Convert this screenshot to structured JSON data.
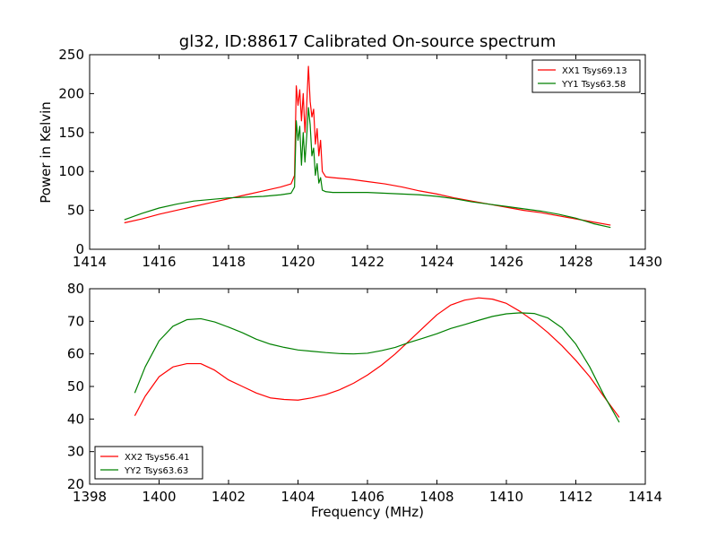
{
  "chart_data": [
    {
      "type": "line",
      "title": "gl32, ID:88617 Calibrated On-source spectrum",
      "xlabel": "",
      "ylabel": "Power in Kelvin",
      "xlim": [
        1414,
        1430
      ],
      "ylim": [
        0,
        250
      ],
      "xticks": [
        1414,
        1416,
        1418,
        1420,
        1422,
        1424,
        1426,
        1428,
        1430
      ],
      "yticks": [
        0,
        50,
        100,
        150,
        200,
        250
      ],
      "legend_position": "upper right",
      "series": [
        {
          "name": "XX1 Tsys69.13",
          "color": "#ff0000",
          "x": [
            1415.0,
            1415.5,
            1416.0,
            1416.5,
            1417.0,
            1417.5,
            1418.0,
            1418.5,
            1419.0,
            1419.5,
            1419.8,
            1419.9,
            1419.95,
            1420.0,
            1420.05,
            1420.1,
            1420.15,
            1420.2,
            1420.25,
            1420.3,
            1420.35,
            1420.4,
            1420.45,
            1420.5,
            1420.55,
            1420.6,
            1420.65,
            1420.7,
            1420.8,
            1421.0,
            1421.5,
            1422.0,
            1422.5,
            1423.0,
            1423.5,
            1424.0,
            1424.5,
            1425.0,
            1425.5,
            1426.0,
            1426.5,
            1427.0,
            1427.5,
            1428.0,
            1428.5,
            1429.0
          ],
          "y": [
            34,
            39,
            45,
            50,
            55,
            60,
            65,
            70,
            75,
            80,
            84,
            95,
            210,
            185,
            205,
            165,
            200,
            150,
            185,
            235,
            190,
            170,
            180,
            135,
            155,
            120,
            140,
            100,
            93,
            92,
            90,
            87,
            84,
            80,
            75,
            71,
            66,
            62,
            58,
            54,
            50,
            47,
            43,
            39,
            35,
            31
          ]
        },
        {
          "name": "YY1 Tsys63.58",
          "color": "#008000",
          "x": [
            1415.0,
            1415.5,
            1416.0,
            1416.5,
            1417.0,
            1417.5,
            1418.0,
            1418.5,
            1419.0,
            1419.5,
            1419.8,
            1419.9,
            1419.95,
            1420.0,
            1420.05,
            1420.1,
            1420.15,
            1420.2,
            1420.25,
            1420.3,
            1420.35,
            1420.4,
            1420.45,
            1420.5,
            1420.55,
            1420.6,
            1420.65,
            1420.7,
            1420.8,
            1421.0,
            1421.5,
            1422.0,
            1422.5,
            1423.0,
            1423.5,
            1424.0,
            1424.5,
            1425.0,
            1425.5,
            1426.0,
            1426.5,
            1427.0,
            1427.5,
            1428.0,
            1428.5,
            1429.0
          ],
          "y": [
            38,
            46,
            53,
            58,
            62,
            64,
            66,
            67,
            68,
            70,
            72,
            80,
            165,
            140,
            158,
            108,
            150,
            112,
            145,
            182,
            160,
            120,
            130,
            95,
            110,
            85,
            92,
            76,
            74,
            73,
            73,
            73,
            72,
            71,
            70,
            68,
            65,
            61,
            58,
            55,
            52,
            49,
            45,
            40,
            33,
            28
          ]
        }
      ]
    },
    {
      "type": "line",
      "title": "",
      "xlabel": "Frequency (MHz)",
      "ylabel": "",
      "xlim": [
        1398,
        1414
      ],
      "ylim": [
        20,
        80
      ],
      "xticks": [
        1398,
        1400,
        1402,
        1404,
        1406,
        1408,
        1410,
        1412,
        1414
      ],
      "yticks": [
        20,
        30,
        40,
        50,
        60,
        70,
        80
      ],
      "legend_position": "lower left",
      "series": [
        {
          "name": "XX2 Tsys56.41",
          "color": "#ff0000",
          "x": [
            1399.3,
            1399.6,
            1400.0,
            1400.4,
            1400.8,
            1401.2,
            1401.6,
            1402.0,
            1402.4,
            1402.8,
            1403.2,
            1403.6,
            1404.0,
            1404.4,
            1404.8,
            1405.2,
            1405.6,
            1406.0,
            1406.4,
            1406.8,
            1407.2,
            1407.6,
            1408.0,
            1408.4,
            1408.8,
            1409.2,
            1409.6,
            1410.0,
            1410.4,
            1410.8,
            1411.2,
            1411.6,
            1412.0,
            1412.4,
            1412.8,
            1413.25
          ],
          "y": [
            41,
            47,
            53,
            56,
            57,
            57,
            55,
            52,
            50,
            48,
            46.5,
            46,
            45.8,
            46.5,
            47.5,
            49,
            51,
            53.5,
            56.5,
            60,
            64,
            68,
            72,
            75,
            76.5,
            77.2,
            76.8,
            75.5,
            73,
            70,
            66.5,
            62.5,
            58,
            53,
            47,
            40.5
          ]
        },
        {
          "name": "YY2 Tsys63.63",
          "color": "#008000",
          "x": [
            1399.3,
            1399.6,
            1400.0,
            1400.4,
            1400.8,
            1401.2,
            1401.6,
            1402.0,
            1402.4,
            1402.8,
            1403.2,
            1403.6,
            1404.0,
            1404.4,
            1404.8,
            1405.2,
            1405.6,
            1406.0,
            1406.4,
            1406.8,
            1407.2,
            1407.6,
            1408.0,
            1408.4,
            1408.8,
            1409.2,
            1409.6,
            1410.0,
            1410.4,
            1410.8,
            1411.2,
            1411.6,
            1412.0,
            1412.4,
            1412.8,
            1413.25
          ],
          "y": [
            48,
            56,
            64,
            68.5,
            70.5,
            70.8,
            69.8,
            68.2,
            66.5,
            64.5,
            63,
            62,
            61.2,
            60.8,
            60.4,
            60.1,
            60,
            60.2,
            61,
            62,
            63.5,
            64.8,
            66.2,
            67.8,
            69,
            70.3,
            71.5,
            72.3,
            72.6,
            72.4,
            71,
            68,
            63,
            56,
            47.5,
            39
          ]
        }
      ]
    }
  ]
}
